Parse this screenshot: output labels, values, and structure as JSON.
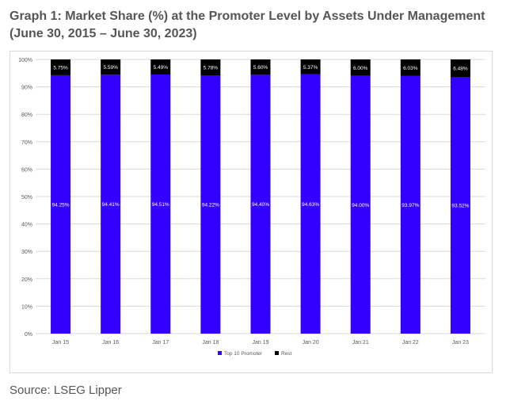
{
  "title": "Graph 1: Market Share (%) at the Promoter Level by Assets Under Management (June 30, 2015 – June 30, 2023)",
  "source": "Source: LSEG Lipper",
  "colors": {
    "top10": "#3300ff",
    "rest": "#000000",
    "grid": "#d9d9d9",
    "axis_text": "#595959"
  },
  "chart_data": {
    "type": "bar",
    "stacked": true,
    "title": "Graph 1: Market Share (%) at the Promoter Level by Assets Under Management (June 30, 2015 – June 30, 2023)",
    "categories": [
      "Jan 15",
      "Jan 16",
      "Jan 17",
      "Jan 18",
      "Jan 19",
      "Jan 20",
      "Jan 21",
      "Jan 22",
      "Jan 23"
    ],
    "series": [
      {
        "name": "Top 10 Promoter",
        "values": [
          94.25,
          94.41,
          94.51,
          94.22,
          94.4,
          94.63,
          94.0,
          93.97,
          93.52
        ],
        "labels": [
          "94.25%",
          "94.41%",
          "94.51%",
          "94.22%",
          "94.40%",
          "94.63%",
          "94.00%",
          "93.97%",
          "93.52%"
        ]
      },
      {
        "name": "Rest",
        "values": [
          5.75,
          5.59,
          5.49,
          5.78,
          5.6,
          5.37,
          6.0,
          6.03,
          6.48
        ],
        "labels": [
          "5.75%",
          "5.59%",
          "5.49%",
          "5.78%",
          "5.60%",
          "5.37%",
          "6.00%",
          "6.03%",
          "6.48%"
        ]
      }
    ],
    "yticks": [
      "0%",
      "10%",
      "20%",
      "30%",
      "40%",
      "50%",
      "60%",
      "70%",
      "80%",
      "90%",
      "100%"
    ],
    "ylim": [
      0,
      100
    ],
    "grid": true,
    "legend": "bottom-center",
    "xlabel": "",
    "ylabel": ""
  }
}
